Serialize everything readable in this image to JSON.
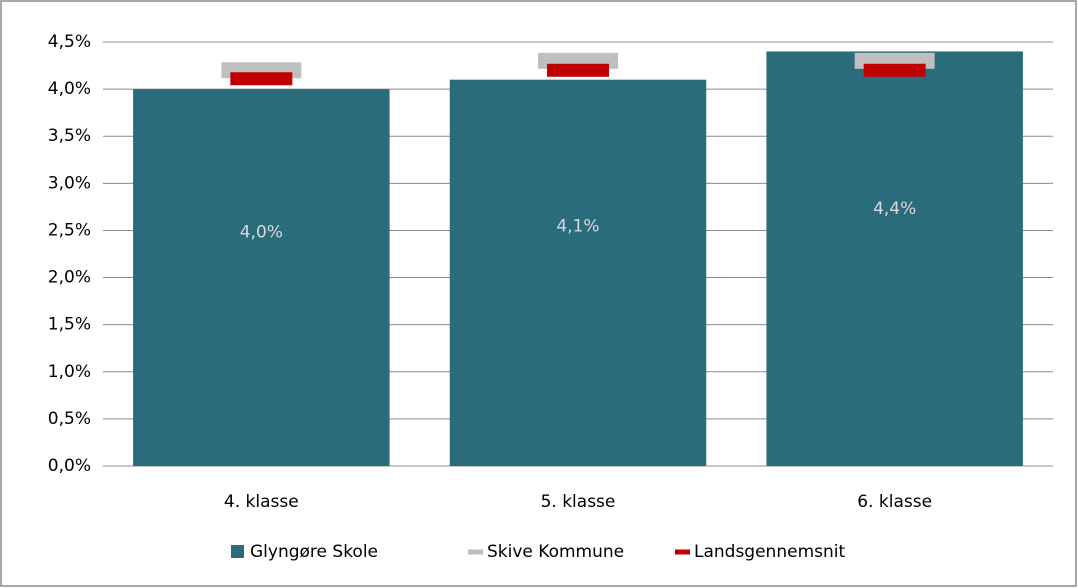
{
  "chart_data": {
    "type": "bar",
    "categories": [
      "4. klasse",
      "5. klasse",
      "6. klasse"
    ],
    "series": [
      {
        "name": "Glyngøre Skole",
        "color": "#2a6b7c",
        "values": [
          4.0,
          4.1,
          4.4
        ],
        "value_labels": [
          "4,0%",
          "4,1%",
          "4,4%"
        ]
      },
      {
        "name": "Skive Kommune",
        "color": "#bfbfbf",
        "values": [
          4.2,
          4.3,
          4.3
        ]
      },
      {
        "name": "Landsgennemsnit",
        "color": "#c00000",
        "values": [
          4.11,
          4.2,
          4.2
        ]
      }
    ],
    "ylim": [
      0,
      4.5
    ],
    "yticks": [
      {
        "value": 0,
        "label": "0,0%"
      },
      {
        "value": 0.5,
        "label": "0,5%"
      },
      {
        "value": 1.0,
        "label": "1,0%"
      },
      {
        "value": 1.5,
        "label": "1,5%"
      },
      {
        "value": 2.0,
        "label": "2,0%"
      },
      {
        "value": 2.5,
        "label": "2,5%"
      },
      {
        "value": 3.0,
        "label": "3,0%"
      },
      {
        "value": 3.5,
        "label": "3,5%"
      },
      {
        "value": 4.0,
        "label": "4,0%"
      },
      {
        "value": 4.5,
        "label": "4,5%"
      }
    ],
    "grid": true,
    "legend": "bottom"
  }
}
